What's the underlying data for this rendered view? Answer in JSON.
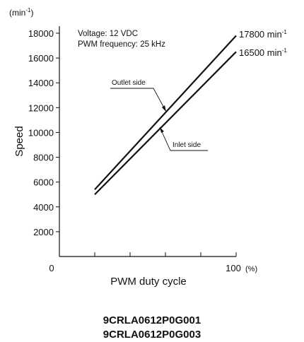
{
  "chart_data": {
    "type": "line",
    "ylabel": "Speed",
    "y_unit": "(min-1)",
    "xlabel": "PWM duty cycle",
    "x_unit": "(%)",
    "xlim": [
      0,
      100
    ],
    "ylim": [
      0,
      18000
    ],
    "y_ticks": [
      2000,
      4000,
      6000,
      8000,
      10000,
      12000,
      14000,
      16000,
      18000
    ],
    "x_tick_labels": [
      "0",
      "100"
    ],
    "grid": false,
    "notes": [
      "Voltage: 12 VDC",
      "PWM frequency: 25 kHz"
    ],
    "series": [
      {
        "name": "Outlet side",
        "x": [
          20,
          100
        ],
        "y": [
          5400,
          17800
        ],
        "end_label": "17800 min-1"
      },
      {
        "name": "Inlet side",
        "x": [
          20,
          100
        ],
        "y": [
          5000,
          16500
        ],
        "end_label": "16500 min-1"
      }
    ]
  },
  "models": [
    "9CRLA0612P0G001",
    "9CRLA0612P0G003"
  ]
}
